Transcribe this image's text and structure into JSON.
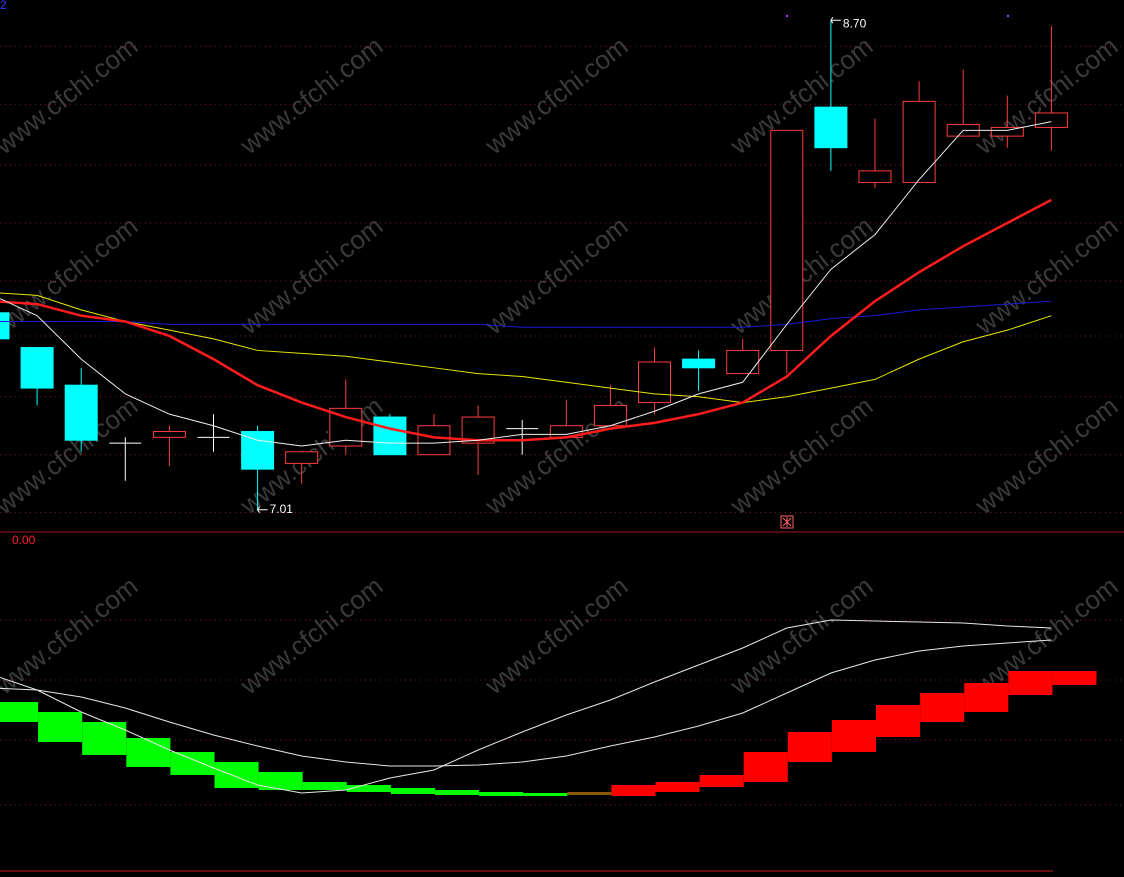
{
  "corner_label": "2",
  "watermark": "www.cfchi.com",
  "chart_data": [
    {
      "type": "candlestick",
      "open": [
        7.69,
        7.57,
        7.44,
        7.24,
        7.26,
        7.26,
        7.28,
        7.17,
        7.23,
        7.33,
        7.2,
        7.24,
        7.29,
        7.26,
        7.3,
        7.38,
        7.53,
        7.48,
        7.56,
        8.4,
        8.14,
        8.14,
        8.3,
        8.3,
        8.33
      ],
      "high": [
        7.69,
        7.57,
        7.5,
        7.26,
        7.3,
        7.34,
        7.3,
        7.21,
        7.46,
        7.34,
        7.34,
        7.37,
        7.32,
        7.39,
        7.44,
        7.57,
        7.56,
        7.6,
        8.32,
        8.7,
        8.36,
        8.49,
        8.53,
        8.44,
        8.68
      ],
      "low": [
        7.6,
        7.37,
        7.21,
        7.11,
        7.16,
        7.21,
        7.01,
        7.1,
        7.2,
        7.2,
        7.2,
        7.13,
        7.2,
        7.26,
        7.3,
        7.34,
        7.42,
        7.48,
        7.48,
        8.18,
        8.12,
        8.14,
        8.3,
        8.26,
        8.25
      ],
      "close": [
        7.6,
        7.43,
        7.25,
        7.24,
        7.28,
        7.26,
        7.15,
        7.21,
        7.36,
        7.2,
        7.3,
        7.33,
        7.29,
        7.3,
        7.37,
        7.52,
        7.5,
        7.56,
        8.32,
        8.26,
        8.18,
        8.42,
        8.34,
        8.33,
        8.38
      ],
      "up_color": "#ff3c3c",
      "down_color": "#00ffff",
      "flat_color": "#ffffff",
      "lines": [
        {
          "color": "#1a1ad8",
          "width": 1,
          "values": [
            7.66,
            7.66,
            7.66,
            7.66,
            7.65,
            7.65,
            7.65,
            7.65,
            7.65,
            7.65,
            7.65,
            7.65,
            7.64,
            7.64,
            7.64,
            7.64,
            7.64,
            7.64,
            7.65,
            7.67,
            7.68,
            7.7,
            7.71,
            7.72,
            7.73
          ]
        },
        {
          "color": "#e6e600",
          "width": 1,
          "values": [
            7.76,
            7.75,
            7.7,
            7.66,
            7.63,
            7.6,
            7.56,
            7.55,
            7.54,
            7.52,
            7.5,
            7.48,
            7.47,
            7.45,
            7.43,
            7.41,
            7.4,
            7.38,
            7.4,
            7.43,
            7.46,
            7.53,
            7.59,
            7.63,
            7.68
          ]
        },
        {
          "color": "#ff1c1c",
          "width": 2.5,
          "values": [
            7.73,
            7.72,
            7.68,
            7.66,
            7.61,
            7.53,
            7.44,
            7.38,
            7.33,
            7.29,
            7.26,
            7.25,
            7.25,
            7.26,
            7.29,
            7.31,
            7.34,
            7.38,
            7.47,
            7.61,
            7.73,
            7.83,
            7.92,
            8.0,
            8.08
          ]
        },
        {
          "color": "#f0f0f0",
          "width": 1,
          "values": [
            7.75,
            7.68,
            7.53,
            7.41,
            7.34,
            7.3,
            7.25,
            7.23,
            7.25,
            7.24,
            7.24,
            7.25,
            7.27,
            7.27,
            7.3,
            7.35,
            7.41,
            7.45,
            7.65,
            7.84,
            7.96,
            8.15,
            8.32,
            8.32,
            8.35
          ]
        }
      ],
      "annotations": [
        {
          "value": 8.7,
          "label": "8.70"
        },
        {
          "value": 7.01,
          "label": "7.01"
        }
      ],
      "ylim": [
        6.94,
        8.77
      ],
      "grid_values": [
        8.61,
        8.41,
        8.2,
        8.0,
        7.8,
        7.61,
        7.4,
        7.2,
        7.0
      ],
      "grid_color": "#8a1a1a"
    },
    {
      "type": "macd",
      "zero_label": {
        "value": 0,
        "label": "0.00"
      },
      "bar_high": [
        0.94,
        0.84,
        0.74,
        0.58,
        0.44,
        0.34,
        0.24,
        0.14,
        0.11,
        0.08,
        0.06,
        0.04,
        0.03,
        0.04,
        0.11,
        0.14,
        0.21,
        0.44,
        0.64,
        0.76,
        0.91,
        1.03,
        1.13,
        1.25,
        1.25
      ],
      "bar_low": [
        0.74,
        0.54,
        0.41,
        0.29,
        0.21,
        0.08,
        0.06,
        0.06,
        0.04,
        0.02,
        0.01,
        0.0,
        0.0,
        0.01,
        0.0,
        0.04,
        0.09,
        0.14,
        0.34,
        0.44,
        0.59,
        0.74,
        0.84,
        1.01,
        1.11
      ],
      "bar_colors": [
        "#00ff00",
        "#00ff00",
        "#00ff00",
        "#00ff00",
        "#00ff00",
        "#00ff00",
        "#00ff00",
        "#00ff00",
        "#00ff00",
        "#00ff00",
        "#00ff00",
        "#00ff00",
        "#00ff00",
        "#8b5a00",
        "#ff0000",
        "#ff0000",
        "#ff0000",
        "#ff0000",
        "#ff0000",
        "#ff0000",
        "#ff0000",
        "#ff0000",
        "#ff0000",
        "#ff0000",
        "#ff0000"
      ],
      "lines": [
        {
          "color": "#e8e8e8",
          "width": 1,
          "values": [
            1.21,
            1.06,
            0.84,
            0.66,
            0.46,
            0.28,
            0.11,
            0.03,
            0.06,
            0.18,
            0.26,
            0.46,
            0.64,
            0.81,
            0.96,
            1.14,
            1.31,
            1.48,
            1.68,
            1.76,
            1.75,
            1.74,
            1.73,
            1.7,
            1.68
          ]
        },
        {
          "color": "#e8e8e8",
          "width": 1,
          "values": [
            1.08,
            1.06,
            0.99,
            0.88,
            0.74,
            0.61,
            0.5,
            0.4,
            0.34,
            0.3,
            0.3,
            0.31,
            0.34,
            0.4,
            0.5,
            0.59,
            0.7,
            0.83,
            1.03,
            1.23,
            1.36,
            1.45,
            1.5,
            1.53,
            1.56
          ]
        }
      ],
      "ylim": [
        -0.75,
        2.61
      ],
      "grid_values": [
        1.76,
        1.16,
        0.56,
        -0.09
      ],
      "grid_color": "#8a1a1a"
    }
  ]
}
